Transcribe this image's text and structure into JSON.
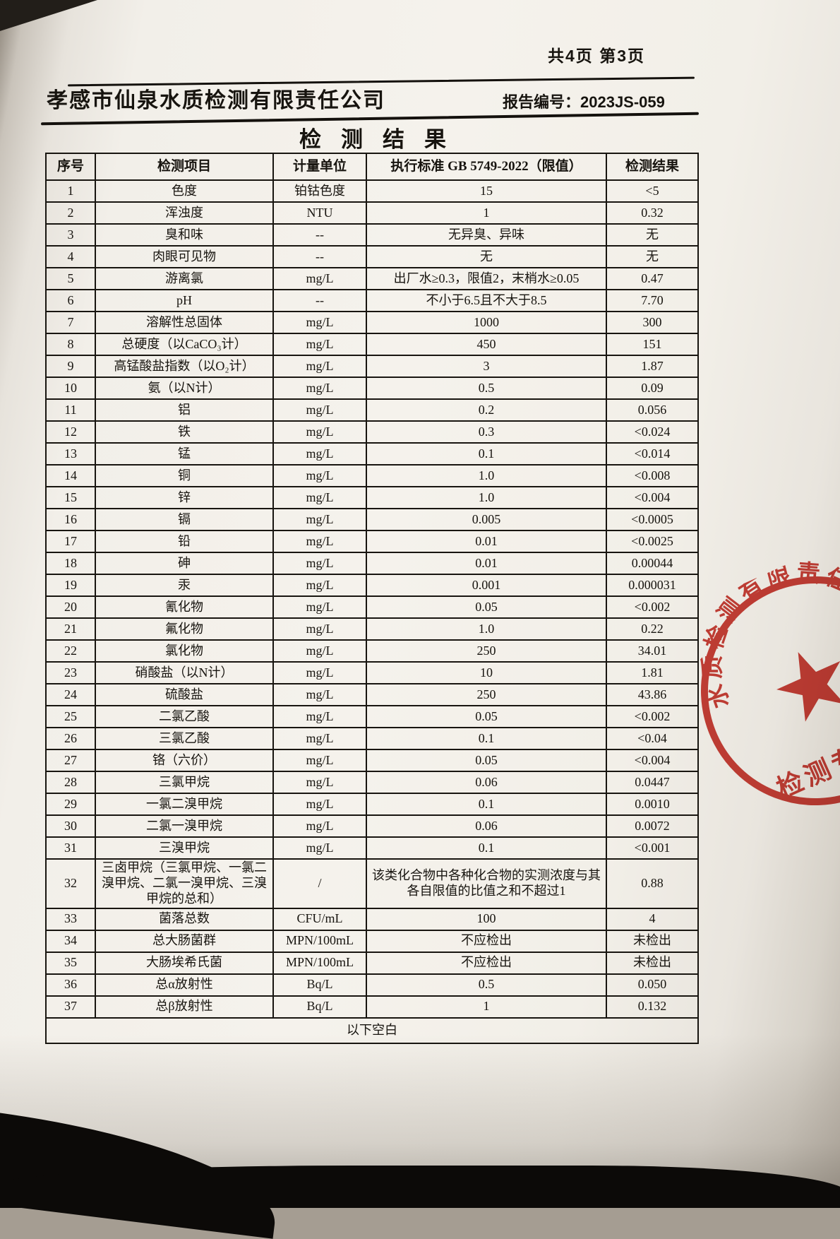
{
  "page": {
    "pagination": "共4页 第3页",
    "company": "孝感市仙泉水质检测有限责任公司",
    "report_label": "报告编号：2023JS-059",
    "title": "检测结果"
  },
  "table": {
    "headers": [
      "序号",
      "检测项目",
      "计量单位",
      "执行标准 GB 5749-2022（限值）",
      "检测结果"
    ],
    "rows": [
      [
        "1",
        "色度",
        "铂钴色度",
        "15",
        "<5"
      ],
      [
        "2",
        "浑浊度",
        "NTU",
        "1",
        "0.32"
      ],
      [
        "3",
        "臭和味",
        "--",
        "无异臭、异味",
        "无"
      ],
      [
        "4",
        "肉眼可见物",
        "--",
        "无",
        "无"
      ],
      [
        "5",
        "游离氯",
        "mg/L",
        "出厂水≥0.3，限值2，末梢水≥0.05",
        "0.47"
      ],
      [
        "6",
        "pH",
        "--",
        "不小于6.5且不大于8.5",
        "7.70"
      ],
      [
        "7",
        "溶解性总固体",
        "mg/L",
        "1000",
        "300"
      ],
      [
        "8",
        "总硬度（以CaCO₃计）",
        "mg/L",
        "450",
        "151"
      ],
      [
        "9",
        "高锰酸盐指数（以O₂计）",
        "mg/L",
        "3",
        "1.87"
      ],
      [
        "10",
        "氨（以N计）",
        "mg/L",
        "0.5",
        "0.09"
      ],
      [
        "11",
        "铝",
        "mg/L",
        "0.2",
        "0.056"
      ],
      [
        "12",
        "铁",
        "mg/L",
        "0.3",
        "<0.024"
      ],
      [
        "13",
        "锰",
        "mg/L",
        "0.1",
        "<0.014"
      ],
      [
        "14",
        "铜",
        "mg/L",
        "1.0",
        "<0.008"
      ],
      [
        "15",
        "锌",
        "mg/L",
        "1.0",
        "<0.004"
      ],
      [
        "16",
        "镉",
        "mg/L",
        "0.005",
        "<0.0005"
      ],
      [
        "17",
        "铅",
        "mg/L",
        "0.01",
        "<0.0025"
      ],
      [
        "18",
        "砷",
        "mg/L",
        "0.01",
        "0.00044"
      ],
      [
        "19",
        "汞",
        "mg/L",
        "0.001",
        "0.000031"
      ],
      [
        "20",
        "氰化物",
        "mg/L",
        "0.05",
        "<0.002"
      ],
      [
        "21",
        "氟化物",
        "mg/L",
        "1.0",
        "0.22"
      ],
      [
        "22",
        "氯化物",
        "mg/L",
        "250",
        "34.01"
      ],
      [
        "23",
        "硝酸盐（以N计）",
        "mg/L",
        "10",
        "1.81"
      ],
      [
        "24",
        "硫酸盐",
        "mg/L",
        "250",
        "43.86"
      ],
      [
        "25",
        "二氯乙酸",
        "mg/L",
        "0.05",
        "<0.002"
      ],
      [
        "26",
        "三氯乙酸",
        "mg/L",
        "0.1",
        "<0.04"
      ],
      [
        "27",
        "铬（六价）",
        "mg/L",
        "0.05",
        "<0.004"
      ],
      [
        "28",
        "三氯甲烷",
        "mg/L",
        "0.06",
        "0.0447"
      ],
      [
        "29",
        "一氯二溴甲烷",
        "mg/L",
        "0.1",
        "0.0010"
      ],
      [
        "30",
        "二氯一溴甲烷",
        "mg/L",
        "0.06",
        "0.0072"
      ],
      [
        "31",
        "三溴甲烷",
        "mg/L",
        "0.1",
        "<0.001"
      ],
      [
        "32",
        "三卤甲烷（三氯甲烷、一氯二溴甲烷、二氯一溴甲烷、三溴甲烷的总和）",
        "/",
        "该类化合物中各种化合物的实测浓度与其各自限值的比值之和不超过1",
        "0.88"
      ],
      [
        "33",
        "菌落总数",
        "CFU/mL",
        "100",
        "4"
      ],
      [
        "34",
        "总大肠菌群",
        "MPN/100mL",
        "不应检出",
        "未检出"
      ],
      [
        "35",
        "大肠埃希氏菌",
        "MPN/100mL",
        "不应检出",
        "未检出"
      ],
      [
        "36",
        "总α放射性",
        "Bq/L",
        "0.5",
        "0.050"
      ],
      [
        "37",
        "总β放射性",
        "Bq/L",
        "1",
        "0.132"
      ]
    ],
    "footer_note": "以下空白"
  },
  "stamp": {
    "arc_text": "水质检测有限责任公司",
    "label": "检测专用章",
    "color": "#c4261d"
  },
  "colors": {
    "paper": "#f4f1ea",
    "ink": "#17140f",
    "stamp_red": "#c4261d"
  }
}
